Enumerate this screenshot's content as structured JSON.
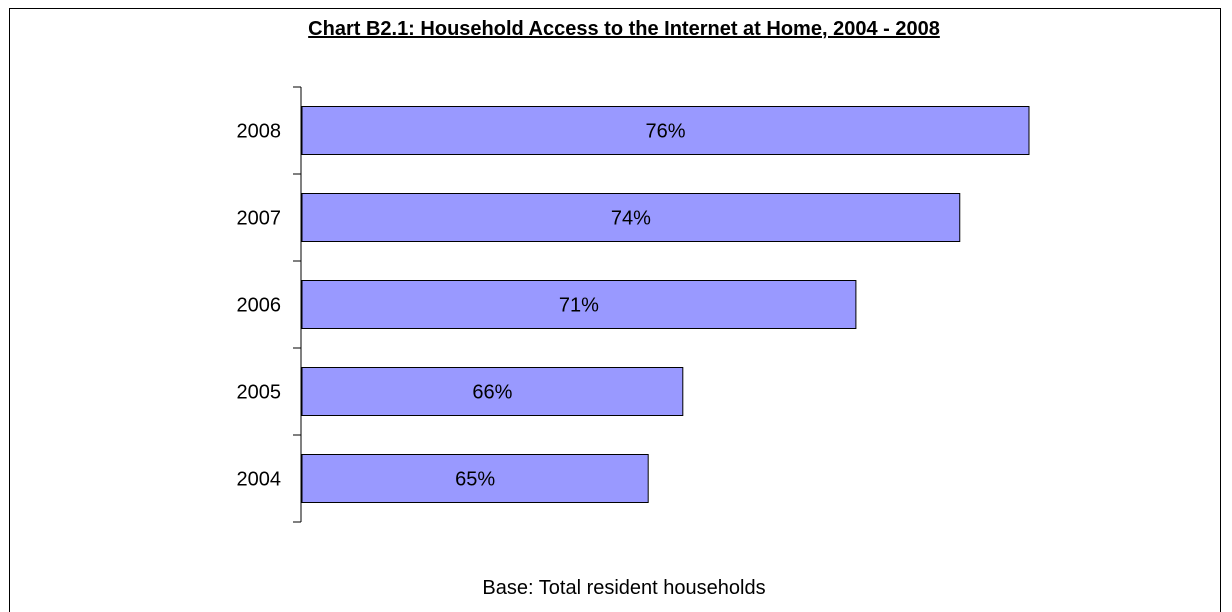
{
  "chart_data": {
    "type": "bar",
    "orientation": "horizontal",
    "title": "Chart B2.1:  Household Access to the Internet at Home, 2004 - 2008",
    "categories": [
      "2008",
      "2007",
      "2006",
      "2005",
      "2004"
    ],
    "values": [
      76,
      74,
      71,
      66,
      65
    ],
    "data_labels": [
      "76%",
      "74%",
      "71%",
      "66%",
      "65%"
    ],
    "xlim": [
      55,
      76
    ],
    "grid": false,
    "legend": "none",
    "bar_color": "#9999ff",
    "footnote": "Base:  Total resident households"
  }
}
